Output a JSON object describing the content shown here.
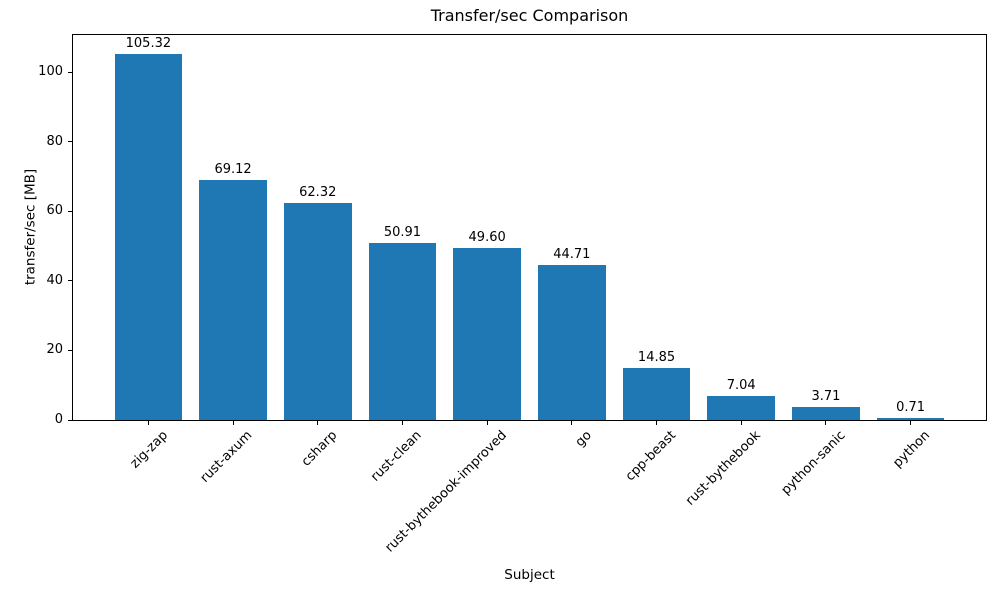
{
  "chart_data": {
    "type": "bar",
    "title": "Transfer/sec Comparison",
    "xlabel": "Subject",
    "ylabel": "transfer/sec [MB]",
    "categories": [
      "zig-zap",
      "rust-axum",
      "csharp",
      "rust-clean",
      "rust-bythebook-improved",
      "go",
      "cpp-beast",
      "rust-bythebook",
      "python-sanic",
      "python"
    ],
    "values": [
      105.32,
      69.12,
      62.32,
      50.91,
      49.6,
      44.71,
      14.85,
      7.04,
      3.71,
      0.71
    ],
    "value_labels": [
      "105.32",
      "69.12",
      "62.32",
      "50.91",
      "49.60",
      "44.71",
      "14.85",
      "7.04",
      "3.71",
      "0.71"
    ],
    "yticks": [
      0,
      20,
      40,
      60,
      80,
      100
    ],
    "ylim": [
      0,
      110.7
    ],
    "xtick_rotation_deg": 45,
    "grid": false,
    "legend": null,
    "bar_color": "#1f77b4",
    "axis_color": "#000000",
    "background_color": "#ffffff"
  }
}
